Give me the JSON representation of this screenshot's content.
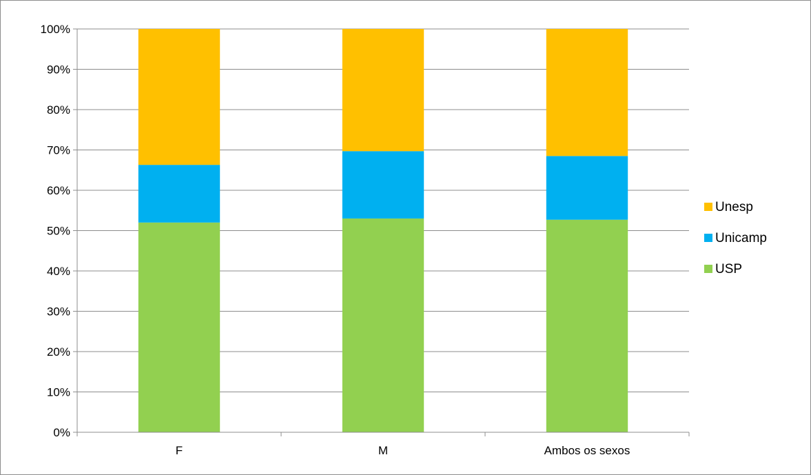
{
  "chart_data": {
    "type": "bar",
    "stacked": true,
    "percent": true,
    "categories": [
      "F",
      "M",
      "Ambos os sexos"
    ],
    "series": [
      {
        "name": "USP",
        "color": "#92d050",
        "values": [
          52,
          53,
          52.7
        ]
      },
      {
        "name": "Unicamp",
        "color": "#00b0f0",
        "values": [
          14.3,
          16.7,
          15.8
        ]
      },
      {
        "name": "Unesp",
        "color": "#ffc000",
        "values": [
          33.7,
          30.3,
          31.5
        ]
      }
    ],
    "yticks": [
      "0%",
      "10%",
      "20%",
      "30%",
      "40%",
      "50%",
      "60%",
      "70%",
      "80%",
      "90%",
      "100%"
    ],
    "ylim": [
      0,
      100
    ],
    "grid": true,
    "legend_position": "right",
    "legend_order": [
      "Unesp",
      "Unicamp",
      "USP"
    ]
  }
}
